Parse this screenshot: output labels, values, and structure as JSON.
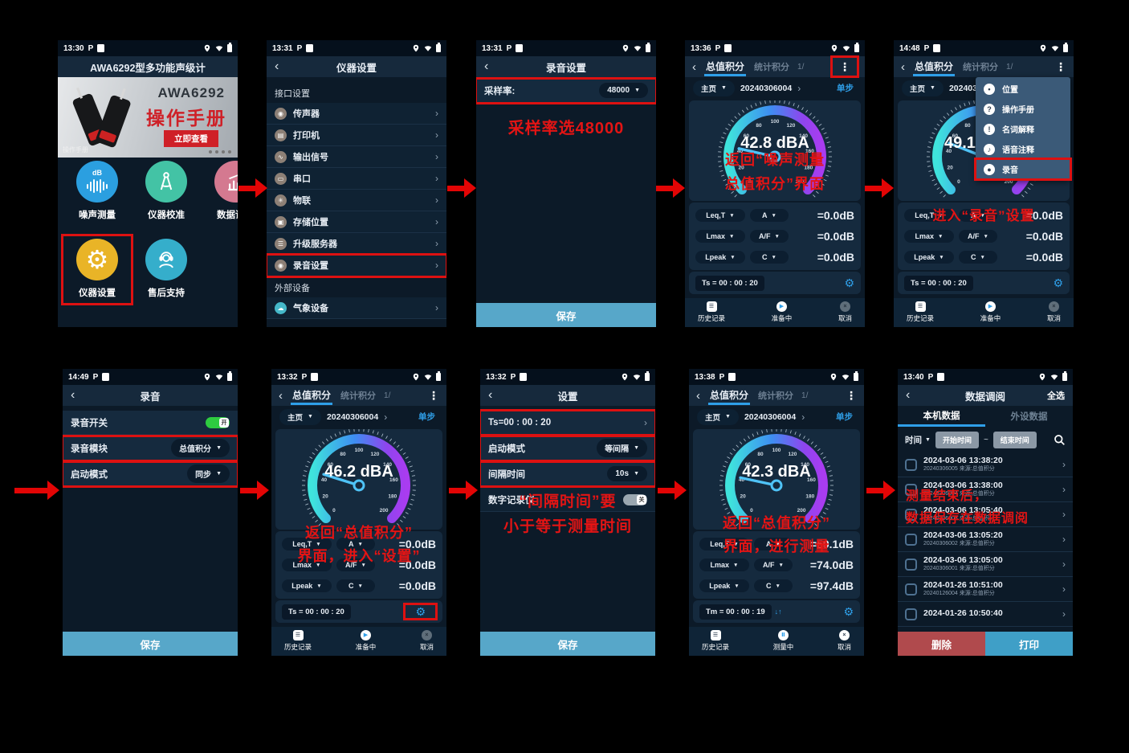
{
  "ui": {
    "status_p": "P",
    "glyphs": {
      "back": "‹",
      "kebab": "⋮",
      "tri": "▼",
      "chev": "›",
      "gear": "⚙",
      "play": "▶",
      "pause": "Ⅱ",
      "close": "×",
      "list": "☰",
      "sort": "↓↑"
    },
    "colors": {
      "accent_blue": "#2f9fe8",
      "annotation_red": "#e41414",
      "highlight_red": "#dd1111",
      "save_blue": "#57a7c9",
      "delete_red": "#b04a4d",
      "print_blue": "#3f9fc7",
      "toggle_green": "#2ecc40"
    }
  },
  "screens": {
    "s1": {
      "time": "13:30",
      "title": "AWA6292型多功能声级计",
      "banner": {
        "model": "AWA6292",
        "headline": "操作手册",
        "cta": "立即查看",
        "watermark": "操作手册"
      },
      "apps": [
        {
          "label": "噪声测量",
          "color": "#2b9fe0",
          "db": "dB"
        },
        {
          "label": "仪器校准",
          "color": "#43c3a5"
        },
        {
          "label": "数据调阅",
          "color": "#d47990"
        },
        {
          "label": "仪器设置",
          "color": "#e9b427"
        },
        {
          "label": "售后支持",
          "color": "#35aecb"
        }
      ]
    },
    "s2": {
      "time": "13:31",
      "title": "仪器设置",
      "section1": "接口设置",
      "section2": "外部设备",
      "items": [
        {
          "label": "传声器",
          "glyph": "◉"
        },
        {
          "label": "打印机",
          "glyph": "▤"
        },
        {
          "label": "输出信号",
          "glyph": "∿"
        },
        {
          "label": "串口",
          "glyph": "▭"
        },
        {
          "label": "物联",
          "glyph": "✳"
        },
        {
          "label": "存储位置",
          "glyph": "▣"
        },
        {
          "label": "升级服务器",
          "glyph": "☰"
        },
        {
          "label": "录音设置",
          "glyph": "◉"
        }
      ],
      "external": {
        "label": "气象设备",
        "glyph": "☁"
      }
    },
    "s3": {
      "time": "13:31",
      "title": "录音设置",
      "field_label": "采样率:",
      "field_value": "48000",
      "note": "采样率选48000",
      "save": "保存"
    },
    "s4": {
      "time": "13:36",
      "tabs": {
        "active": "总值积分",
        "inactive": "统计积分",
        "page": "1/"
      },
      "subrow": {
        "home": "主页",
        "session": "20240306004",
        "step": "单步"
      },
      "gauge": {
        "value": 42.8,
        "display": "42.8 dBA",
        "min": 0,
        "max": 200,
        "tick_step": 20
      },
      "rows": [
        {
          "metric": "Leq,T",
          "weight": "A",
          "value": "=0.0dB"
        },
        {
          "metric": "Lmax",
          "weight": "A/F",
          "value": "=0.0dB"
        },
        {
          "metric": "Lpeak",
          "weight": "C",
          "value": "=0.0dB"
        }
      ],
      "timer": "Ts = 00 : 00 : 20",
      "nav": [
        "历史记录",
        "准备中",
        "取消"
      ],
      "note1": "返回“噪声测量",
      "note2": "总值积分”界面"
    },
    "s5": {
      "time": "14:48",
      "tabs": {
        "active": "总值积分",
        "inactive": "统计积分",
        "page": "1/"
      },
      "subrow": {
        "home": "主页",
        "session": "20240306004",
        "step": "单步"
      },
      "gauge": {
        "value": 49.1,
        "display": "49.1",
        "min": 0,
        "max": 200,
        "tick_step": 20
      },
      "menu": [
        {
          "label": "位置",
          "glyph": "•"
        },
        {
          "label": "操作手册",
          "glyph": "?"
        },
        {
          "label": "名词解释",
          "glyph": "!"
        },
        {
          "label": "语音注释",
          "glyph": "♪"
        },
        {
          "label": "录音",
          "glyph": "●"
        }
      ],
      "rows": [
        {
          "metric": "Leq,T",
          "weight": "A",
          "value": "=0.0dB"
        },
        {
          "metric": "Lmax",
          "weight": "A/F",
          "value": "=0.0dB"
        },
        {
          "metric": "Lpeak",
          "weight": "C",
          "value": "=0.0dB"
        }
      ],
      "timer": "Ts = 00 : 00 : 20",
      "nav": [
        "历史记录",
        "准备中",
        "取消"
      ],
      "note": "进入“录音”设置"
    },
    "s6": {
      "time": "14:49",
      "title": "录音",
      "switch_label": "录音开关",
      "switch_state": "开",
      "module_label": "录音模块",
      "module_value": "总值积分",
      "mode_label": "启动模式",
      "mode_value": "同步",
      "save": "保存"
    },
    "s7": {
      "time": "13:32",
      "tabs": {
        "active": "总值积分",
        "inactive": "统计积分",
        "page": "1/"
      },
      "subrow": {
        "home": "主页",
        "session": "20240306004",
        "step": "单步"
      },
      "gauge": {
        "value": 46.2,
        "display": "46.2 dBA",
        "min": 0,
        "max": 200,
        "tick_step": 20
      },
      "rows": [
        {
          "metric": "Leq,T",
          "weight": "A",
          "value": "=0.0dB"
        },
        {
          "metric": "Lmax",
          "weight": "A/F",
          "value": "=0.0dB"
        },
        {
          "metric": "Lpeak",
          "weight": "C",
          "value": "=0.0dB"
        }
      ],
      "timer": "Ts = 00 : 00 : 20",
      "nav": [
        "历史记录",
        "准备中",
        "取消"
      ],
      "note1": "返回“总值积分”",
      "note2": "界面，进入“设置”"
    },
    "s8": {
      "time": "13:32",
      "title": "设置",
      "ts": "Ts=00 : 00 : 20",
      "mode_label": "启动模式",
      "mode_value": "等间隔",
      "interval_label": "间隔时间",
      "interval_value": "10s",
      "recorder_label": "数字记录仪",
      "recorder_state": "关",
      "note1": "“间隔时间”要",
      "note2": "小于等于测量时间",
      "save": "保存"
    },
    "s9": {
      "time": "13:38",
      "tabs": {
        "active": "总值积分",
        "inactive": "统计积分",
        "page": "1/"
      },
      "subrow": {
        "home": "主页",
        "session": "20240306004",
        "step": "单步"
      },
      "gauge": {
        "value": 42.3,
        "display": "42.3 dBA",
        "min": 0,
        "max": 200,
        "tick_step": 20
      },
      "rows": [
        {
          "metric": "Leq,T",
          "weight": "A",
          "value": "=59.1dB"
        },
        {
          "metric": "Lmax",
          "weight": "A/F",
          "value": "=74.0dB"
        },
        {
          "metric": "Lpeak",
          "weight": "C",
          "value": "=97.4dB"
        }
      ],
      "timer": "Tm = 00 : 00 : 19",
      "nav": [
        "历史记录",
        "测量中",
        "取消"
      ],
      "note1": "返回“总值积分”",
      "note2": "界面，进行测量"
    },
    "s10": {
      "time": "13:40",
      "title": "数据调阅",
      "select_all": "全选",
      "tab_local": "本机数据",
      "tab_external": "外设数据",
      "time_label": "时间",
      "start_btn": "开始时间",
      "tilde": "~",
      "end_btn": "结束时间",
      "records": [
        {
          "datetime": "2024-03-06 13:38:20",
          "meta": "20240306005  来源:总值积分"
        },
        {
          "datetime": "2024-03-06 13:38:00",
          "meta": "20240306004  来源:总值积分"
        },
        {
          "datetime": "2024-03-06 13:05:40",
          "meta": "20240306003  来源:总值积分"
        },
        {
          "datetime": "2024-03-06 13:05:20",
          "meta": "20240306002  来源:总值积分"
        },
        {
          "datetime": "2024-03-06 13:05:00",
          "meta": "20240306001  来源:总值积分"
        },
        {
          "datetime": "2024-01-26 10:51:00",
          "meta": "20240126004  来源:总值积分"
        },
        {
          "datetime": "2024-01-26 10:50:40",
          "meta": ""
        }
      ],
      "delete_btn": "删除",
      "print_btn": "打印",
      "note1": "测量结束后，",
      "note2": "数据保存在数据调阅"
    }
  }
}
